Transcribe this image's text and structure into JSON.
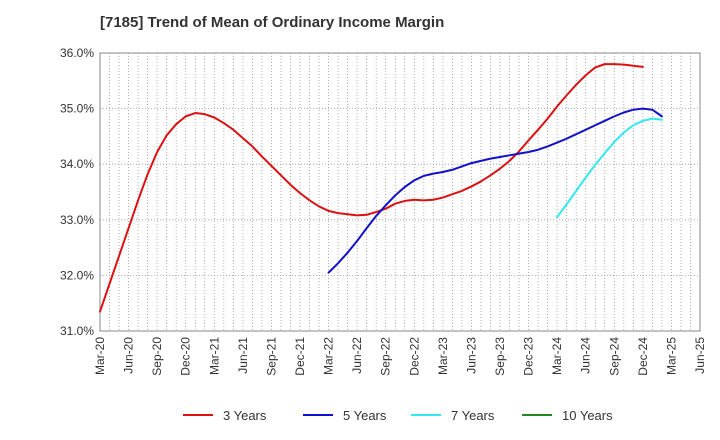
{
  "chart_data": {
    "type": "line",
    "title": "[7185]  Trend of Mean of Ordinary Income Margin",
    "xlabel": "",
    "ylabel": "",
    "x_tick_labels": [
      "Mar-20",
      "Jun-20",
      "Sep-20",
      "Dec-20",
      "Mar-21",
      "Jun-21",
      "Sep-21",
      "Dec-21",
      "Mar-22",
      "Jun-22",
      "Sep-22",
      "Dec-22",
      "Mar-23",
      "Jun-23",
      "Sep-23",
      "Dec-23",
      "Mar-24",
      "Jun-24",
      "Sep-24",
      "Dec-24",
      "Mar-25",
      "Jun-25"
    ],
    "y_tick_labels": [
      "31.0%",
      "32.0%",
      "33.0%",
      "34.0%",
      "35.0%",
      "36.0%"
    ],
    "ylim": [
      31.0,
      36.0
    ],
    "grid": true,
    "legend_position": "bottom",
    "series": [
      {
        "name": "3 Years",
        "color": "#dd1111",
        "start": "Mar-20",
        "values": [
          31.35,
          31.85,
          32.35,
          32.85,
          33.35,
          33.82,
          34.22,
          34.52,
          34.72,
          34.86,
          34.92,
          34.9,
          34.84,
          34.74,
          34.62,
          34.47,
          34.32,
          34.14,
          33.97,
          33.8,
          33.63,
          33.48,
          33.35,
          33.24,
          33.16,
          33.12,
          33.1,
          33.08,
          33.09,
          33.14,
          33.2,
          33.29,
          33.34,
          33.36,
          33.35,
          33.36,
          33.4,
          33.46,
          33.52,
          33.6,
          33.69,
          33.8,
          33.92,
          34.06,
          34.23,
          34.43,
          34.62,
          34.82,
          35.04,
          35.24,
          35.43,
          35.6,
          35.74,
          35.8,
          35.8,
          35.79,
          35.77,
          35.75
        ]
      },
      {
        "name": "5 Years",
        "color": "#1111cc",
        "start": "Mar-22",
        "values": [
          32.05,
          32.22,
          32.41,
          32.62,
          32.85,
          33.07,
          33.26,
          33.44,
          33.59,
          33.71,
          33.79,
          33.83,
          33.86,
          33.9,
          33.96,
          34.02,
          34.06,
          34.1,
          34.13,
          34.16,
          34.19,
          34.22,
          34.26,
          34.32,
          34.39,
          34.46,
          34.54,
          34.62,
          34.7,
          34.78,
          34.86,
          34.93,
          34.98,
          35.0,
          34.98,
          34.86
        ]
      },
      {
        "name": "7 Years",
        "color": "#33e8f0",
        "start": "Mar-24",
        "values": [
          33.05,
          33.28,
          33.52,
          33.76,
          33.99,
          34.2,
          34.4,
          34.57,
          34.7,
          34.78,
          34.82,
          34.8
        ]
      },
      {
        "name": "10 Years",
        "color": "#228822",
        "start": "Mar-20",
        "values": []
      }
    ]
  }
}
